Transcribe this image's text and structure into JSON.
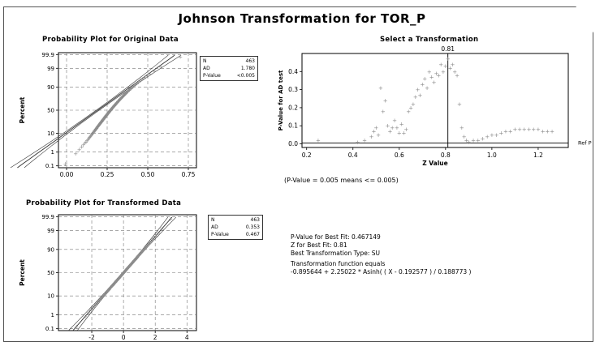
{
  "title": "Johnson Transformation for TOR_P",
  "summary": {
    "pvalue": "P-Value for Best Fit: 0.467149",
    "z": "Z for Best Fit: 0.81",
    "type": "Best Transformation Type: SU",
    "function_label": "Transformation function equals",
    "function": "-0.895644 + 2.25022 * Asinh( ( X - 0.192577 ) / 0.188773 )"
  },
  "colors": {
    "points": "#8c8c8c",
    "lines": "#333333",
    "grid": "#777777"
  },
  "chart_data": [
    {
      "type": "scatter",
      "title": "Probability Plot for Original Data",
      "xlabel": "",
      "ylabel": "Percent",
      "xlim": [
        -0.05,
        0.8
      ],
      "x_ticks": [
        "0.00",
        "0.25",
        "0.50",
        "0.75"
      ],
      "x_tick_values": [
        0,
        0.25,
        0.5,
        0.75
      ],
      "y_scale": "normal-probability",
      "y_ticks": [
        "0.1",
        "1",
        "10",
        "50",
        "90",
        "99",
        "99.9"
      ],
      "y_tick_values": [
        0.1,
        1,
        10,
        50,
        90,
        99,
        99.9
      ],
      "grid": true,
      "stats": [
        {
          "label": "N",
          "value": "463"
        },
        {
          "label": "AD",
          "value": "1.780"
        },
        {
          "label": "P-Value",
          "value": "<0.005"
        }
      ],
      "fit_line": {
        "mean": 0.192,
        "sd": 0.155
      }
    },
    {
      "type": "scatter",
      "title": "Select a Transformation",
      "xlabel": "Z Value",
      "ylabel": "P-Value for AD test",
      "xlim": [
        0.18,
        1.33
      ],
      "ylim": [
        -0.02,
        0.5
      ],
      "x_ticks": [
        "0.2",
        "0.4",
        "0.6",
        "0.8",
        "1.0",
        "1.2"
      ],
      "x_tick_values": [
        0.2,
        0.4,
        0.6,
        0.8,
        1.0,
        1.2
      ],
      "y_ticks": [
        "0.0",
        "0.1",
        "0.2",
        "0.3",
        "0.4"
      ],
      "y_tick_values": [
        0.0,
        0.1,
        0.2,
        0.3,
        0.4
      ],
      "reference_line": {
        "x": 0.81,
        "label": "0.81"
      },
      "right_label": "Ref P",
      "note": "(P-Value = 0.005 means <= 0.005)",
      "points": [
        [
          0.25,
          0.02
        ],
        [
          0.42,
          0.01
        ],
        [
          0.45,
          0.02
        ],
        [
          0.48,
          0.04
        ],
        [
          0.49,
          0.07
        ],
        [
          0.5,
          0.09
        ],
        [
          0.51,
          0.05
        ],
        [
          0.52,
          0.31
        ],
        [
          0.53,
          0.18
        ],
        [
          0.54,
          0.24
        ],
        [
          0.55,
          0.1
        ],
        [
          0.56,
          0.07
        ],
        [
          0.57,
          0.09
        ],
        [
          0.58,
          0.13
        ],
        [
          0.59,
          0.09
        ],
        [
          0.6,
          0.06
        ],
        [
          0.61,
          0.11
        ],
        [
          0.62,
          0.06
        ],
        [
          0.63,
          0.08
        ],
        [
          0.64,
          0.18
        ],
        [
          0.65,
          0.2
        ],
        [
          0.66,
          0.22
        ],
        [
          0.67,
          0.26
        ],
        [
          0.68,
          0.3
        ],
        [
          0.69,
          0.27
        ],
        [
          0.7,
          0.33
        ],
        [
          0.71,
          0.36
        ],
        [
          0.72,
          0.31
        ],
        [
          0.73,
          0.4
        ],
        [
          0.74,
          0.37
        ],
        [
          0.75,
          0.34
        ],
        [
          0.76,
          0.39
        ],
        [
          0.77,
          0.38
        ],
        [
          0.78,
          0.44
        ],
        [
          0.79,
          0.4
        ],
        [
          0.8,
          0.43
        ],
        [
          0.81,
          0.47
        ],
        [
          0.82,
          0.42
        ],
        [
          0.83,
          0.44
        ],
        [
          0.84,
          0.4
        ],
        [
          0.85,
          0.38
        ],
        [
          0.86,
          0.22
        ],
        [
          0.87,
          0.09
        ],
        [
          0.88,
          0.04
        ],
        [
          0.89,
          0.02
        ],
        [
          0.9,
          0.01
        ],
        [
          0.92,
          0.02
        ],
        [
          0.94,
          0.02
        ],
        [
          0.96,
          0.03
        ],
        [
          0.98,
          0.04
        ],
        [
          1.0,
          0.05
        ],
        [
          1.02,
          0.05
        ],
        [
          1.04,
          0.06
        ],
        [
          1.06,
          0.07
        ],
        [
          1.08,
          0.07
        ],
        [
          1.1,
          0.08
        ],
        [
          1.12,
          0.08
        ],
        [
          1.14,
          0.08
        ],
        [
          1.16,
          0.08
        ],
        [
          1.18,
          0.08
        ],
        [
          1.2,
          0.08
        ],
        [
          1.22,
          0.07
        ],
        [
          1.24,
          0.07
        ],
        [
          1.26,
          0.07
        ]
      ]
    },
    {
      "type": "scatter",
      "title": "Probability Plot for Transformed Data",
      "xlabel": "",
      "ylabel": "Percent",
      "xlim": [
        -4.1,
        4.6
      ],
      "x_ticks": [
        "-2",
        "0",
        "2",
        "4"
      ],
      "x_tick_values": [
        -2,
        0,
        2,
        4
      ],
      "y_scale": "normal-probability",
      "y_ticks": [
        "0.1",
        "1",
        "10",
        "50",
        "90",
        "99",
        "99.9"
      ],
      "y_tick_values": [
        0.1,
        1,
        10,
        50,
        90,
        99,
        99.9
      ],
      "grid": true,
      "stats": [
        {
          "label": "N",
          "value": "463"
        },
        {
          "label": "AD",
          "value": "0.353"
        },
        {
          "label": "P-Value",
          "value": "0.467"
        }
      ],
      "fit_line": {
        "mean": 0.0,
        "sd": 1.0
      }
    }
  ]
}
